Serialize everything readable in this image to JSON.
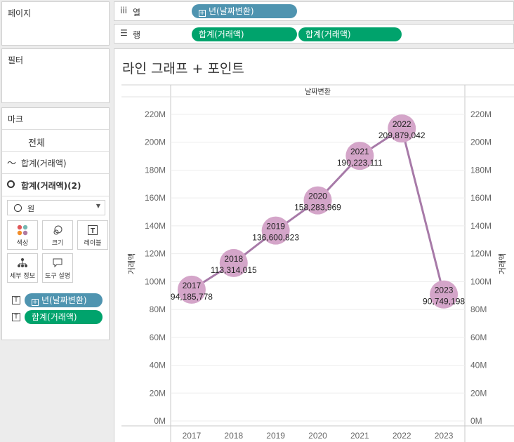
{
  "pages_panel": {
    "title": "페이지"
  },
  "filters_panel": {
    "title": "필터"
  },
  "marks_panel": {
    "title": "마크",
    "all_label": "전체",
    "line_label": "합계(거래액)",
    "circle_label": "합계(거래액)(2)",
    "mark_type": "원",
    "buttons": [
      {
        "label": "색상",
        "icon": "color-dots-icon"
      },
      {
        "label": "크기",
        "icon": "size-circles-icon"
      },
      {
        "label": "레이블",
        "icon": "label-T-icon"
      },
      {
        "label": "세부 정보",
        "icon": "detail-icon"
      },
      {
        "label": "도구 설명",
        "icon": "tooltip-icon"
      }
    ],
    "fields": [
      {
        "type": "T",
        "label": "년(날짜변환)",
        "color": "#4f94b0"
      },
      {
        "type": "T",
        "label": "합계(거래액)",
        "color": "#00a36c"
      }
    ]
  },
  "columns_shelf": {
    "label": "열",
    "pills": [
      "년(날짜변환)"
    ]
  },
  "rows_shelf": {
    "label": "행",
    "pills": [
      "합계(거래액)",
      "합계(거래액)"
    ]
  },
  "colors": {
    "line": "#a77aa8",
    "circle": "#d4a5c9",
    "blue_pill": "#4f94b0",
    "green_pill": "#00a36c"
  },
  "chart_data": {
    "type": "line",
    "title": "라인 그래프 + 포인트",
    "top_header": "날짜변환",
    "ylabel": "거래액",
    "categories": [
      "2017",
      "2018",
      "2019",
      "2020",
      "2021",
      "2022",
      "2023"
    ],
    "values": [
      94185778,
      113314015,
      136600823,
      158283969,
      190223111,
      209879042,
      90749198
    ],
    "value_labels": [
      "94,185,778",
      "113,314,015",
      "136,600,823",
      "158,283,969",
      "190,223,111",
      "209,879,042",
      "90,749,198"
    ],
    "ylim": [
      0,
      220000000
    ],
    "yticks": [
      "0M",
      "20M",
      "40M",
      "60M",
      "80M",
      "100M",
      "120M",
      "140M",
      "160M",
      "180M",
      "200M",
      "220M"
    ],
    "grid": true,
    "dual_axis": true
  }
}
